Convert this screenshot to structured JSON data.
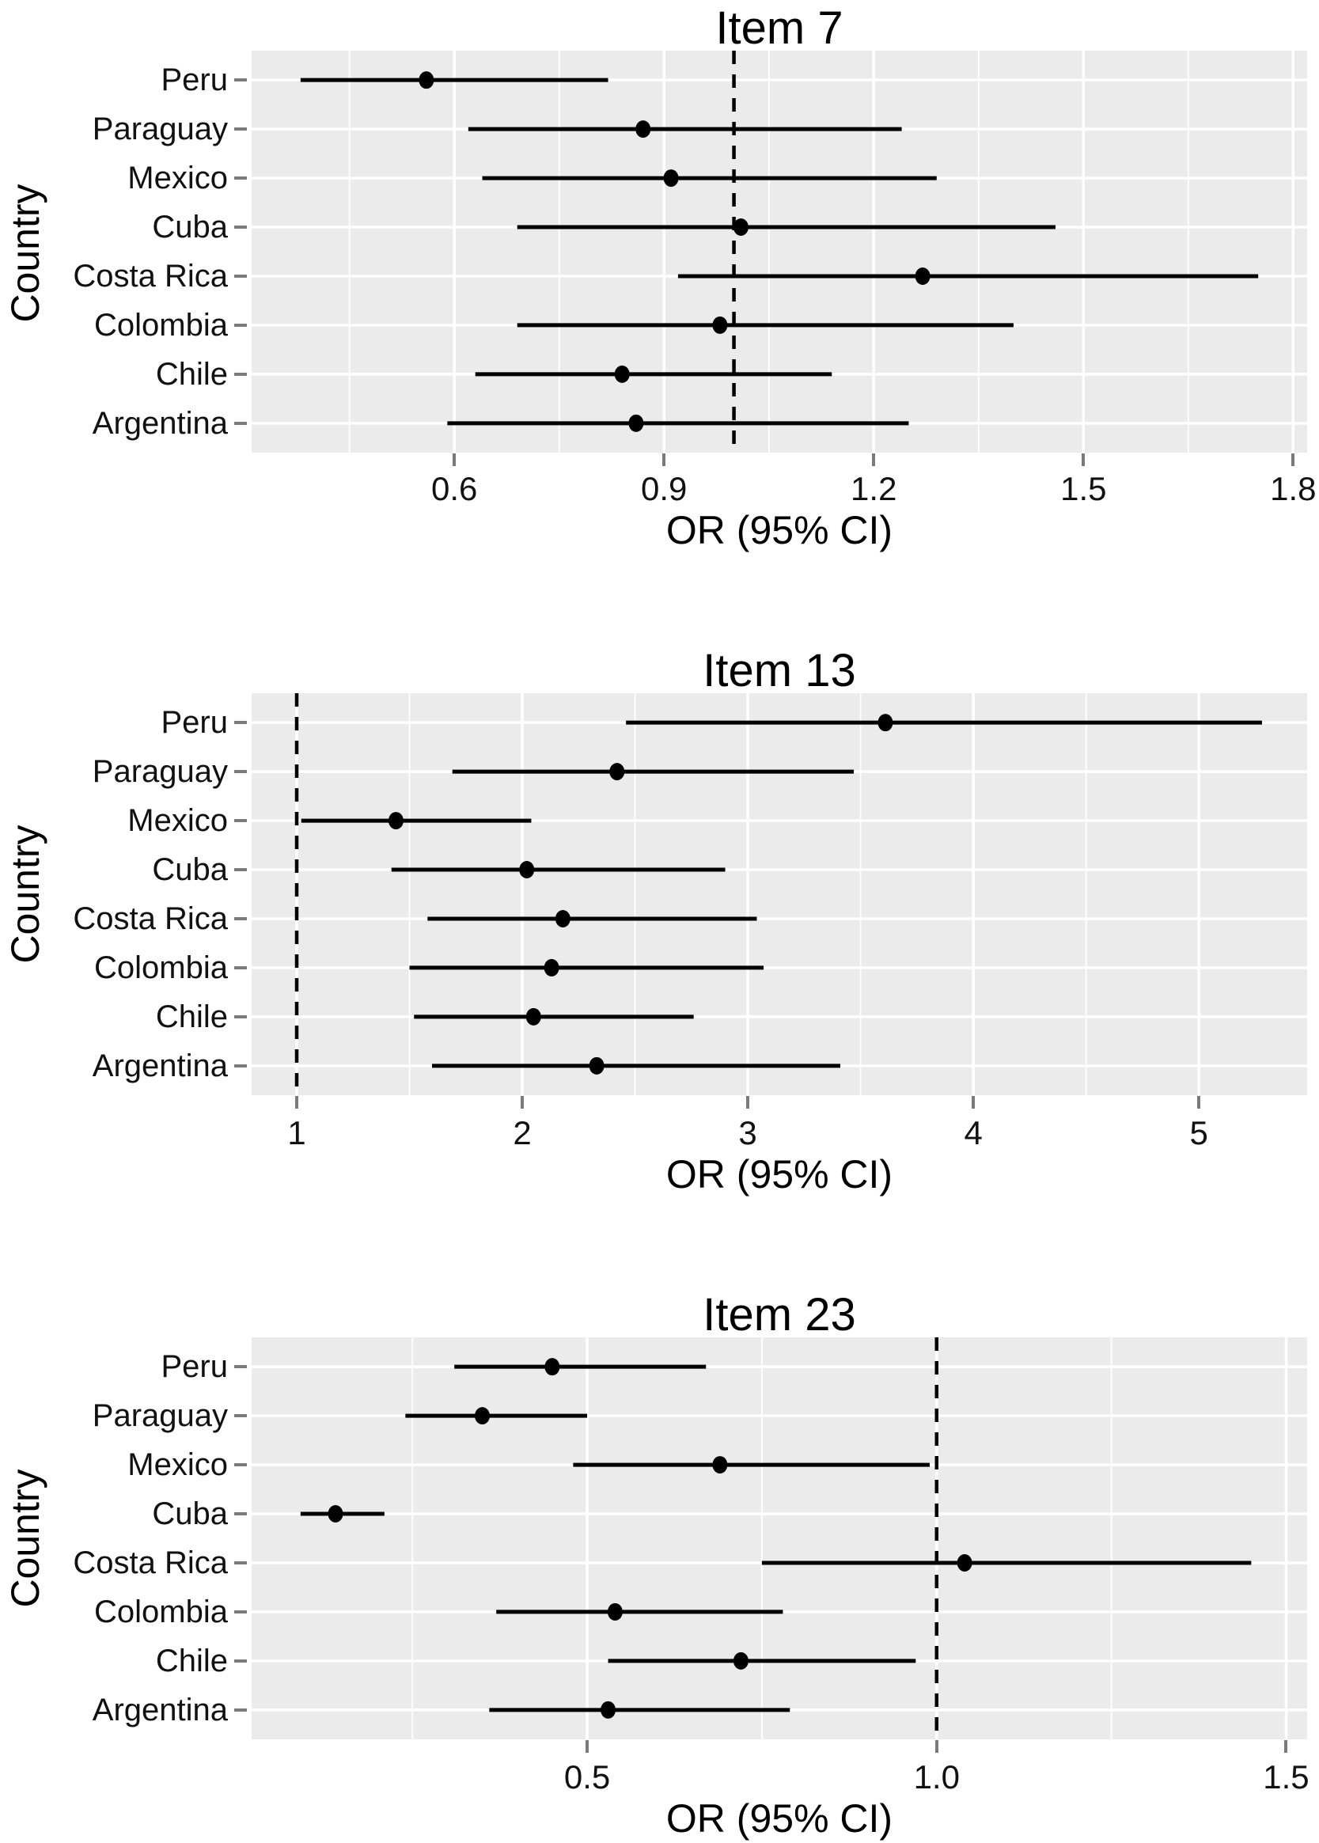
{
  "figure_title": "",
  "y_axis_title": "Country",
  "x_axis_label": "OR (95% CI)",
  "categories": [
    "Peru",
    "Paraguay",
    "Mexico",
    "Cuba",
    "Costa Rica",
    "Colombia",
    "Chile",
    "Argentina"
  ],
  "styles": {
    "panel_fill": "#EBEBEB",
    "grid_color": "#FFFFFF",
    "tick_color": "#7A7A7A",
    "text_color": "#111111",
    "data_color": "#000000",
    "ref_line_color": "#000000",
    "background": "#FFFFFF"
  },
  "chart_data": [
    {
      "type": "scatter",
      "subtype": "forest-plot",
      "title": "Item 7",
      "xlabel": "OR (95% CI)",
      "ylabel": "Country",
      "ref_line": 1.0,
      "xlim": [
        0.31,
        1.82
      ],
      "grid": true,
      "legend": "none",
      "xticks": {
        "values": [
          0.6,
          0.9,
          1.2,
          1.5,
          1.8
        ],
        "labels": [
          "0.6",
          "0.9",
          "1.2",
          "1.5",
          "1.8"
        ]
      },
      "xticks_minor": [
        0.45,
        0.75,
        1.05,
        1.35,
        1.65
      ],
      "points": [
        {
          "country": "Peru",
          "or": 0.56,
          "ci_low": 0.38,
          "ci_high": 0.82
        },
        {
          "country": "Paraguay",
          "or": 0.87,
          "ci_low": 0.62,
          "ci_high": 1.24
        },
        {
          "country": "Mexico",
          "or": 0.91,
          "ci_low": 0.64,
          "ci_high": 1.29
        },
        {
          "country": "Cuba",
          "or": 1.01,
          "ci_low": 0.69,
          "ci_high": 1.46
        },
        {
          "country": "Costa Rica",
          "or": 1.27,
          "ci_low": 0.92,
          "ci_high": 1.75
        },
        {
          "country": "Colombia",
          "or": 0.98,
          "ci_low": 0.69,
          "ci_high": 1.4
        },
        {
          "country": "Chile",
          "or": 0.84,
          "ci_low": 0.63,
          "ci_high": 1.14
        },
        {
          "country": "Argentina",
          "or": 0.86,
          "ci_low": 0.59,
          "ci_high": 1.25
        }
      ]
    },
    {
      "type": "scatter",
      "subtype": "forest-plot",
      "title": "Item 13",
      "xlabel": "OR (95% CI)",
      "ylabel": "Country",
      "ref_line": 1.0,
      "xlim": [
        0.8,
        5.48
      ],
      "grid": true,
      "legend": "none",
      "xticks": {
        "values": [
          1,
          2,
          3,
          4,
          5
        ],
        "labels": [
          "1",
          "2",
          "3",
          "4",
          "5"
        ]
      },
      "xticks_minor": [
        1.5,
        2.5,
        3.5,
        4.5
      ],
      "points": [
        {
          "country": "Peru",
          "or": 3.61,
          "ci_low": 2.46,
          "ci_high": 5.28
        },
        {
          "country": "Paraguay",
          "or": 2.42,
          "ci_low": 1.69,
          "ci_high": 3.47
        },
        {
          "country": "Mexico",
          "or": 1.44,
          "ci_low": 1.02,
          "ci_high": 2.04
        },
        {
          "country": "Cuba",
          "or": 2.02,
          "ci_low": 1.42,
          "ci_high": 2.9
        },
        {
          "country": "Costa Rica",
          "or": 2.18,
          "ci_low": 1.58,
          "ci_high": 3.04
        },
        {
          "country": "Colombia",
          "or": 2.13,
          "ci_low": 1.5,
          "ci_high": 3.07
        },
        {
          "country": "Chile",
          "or": 2.05,
          "ci_low": 1.52,
          "ci_high": 2.76
        },
        {
          "country": "Argentina",
          "or": 2.33,
          "ci_low": 1.6,
          "ci_high": 3.41
        }
      ]
    },
    {
      "type": "scatter",
      "subtype": "forest-plot",
      "title": "Item 23",
      "xlabel": "OR (95% CI)",
      "ylabel": "Country",
      "ref_line": 1.0,
      "xlim": [
        0.02,
        1.53
      ],
      "grid": true,
      "legend": "none",
      "xticks": {
        "values": [
          0.5,
          1.0,
          1.5
        ],
        "labels": [
          "0.5",
          "1.0",
          "1.5"
        ]
      },
      "xticks_minor": [
        0.25,
        0.75,
        1.25
      ],
      "points": [
        {
          "country": "Peru",
          "or": 0.45,
          "ci_low": 0.31,
          "ci_high": 0.67
        },
        {
          "country": "Paraguay",
          "or": 0.35,
          "ci_low": 0.24,
          "ci_high": 0.5
        },
        {
          "country": "Mexico",
          "or": 0.69,
          "ci_low": 0.48,
          "ci_high": 0.99
        },
        {
          "country": "Cuba",
          "or": 0.14,
          "ci_low": 0.09,
          "ci_high": 0.21
        },
        {
          "country": "Costa Rica",
          "or": 1.04,
          "ci_low": 0.75,
          "ci_high": 1.45
        },
        {
          "country": "Colombia",
          "or": 0.54,
          "ci_low": 0.37,
          "ci_high": 0.78
        },
        {
          "country": "Chile",
          "or": 0.72,
          "ci_low": 0.53,
          "ci_high": 0.97
        },
        {
          "country": "Argentina",
          "or": 0.53,
          "ci_low": 0.36,
          "ci_high": 0.79
        }
      ]
    }
  ]
}
